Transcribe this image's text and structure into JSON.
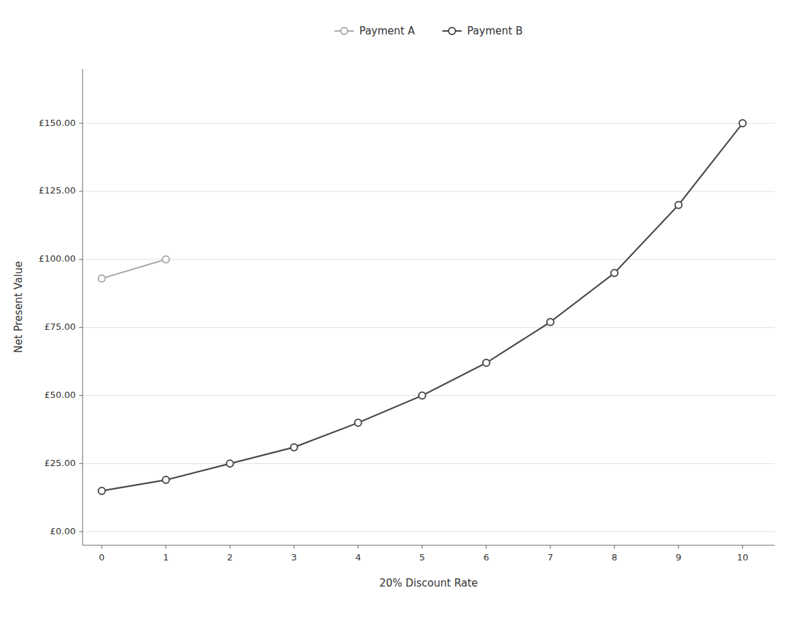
{
  "chart_data": {
    "type": "line",
    "x": [
      0,
      1,
      2,
      3,
      4,
      5,
      6,
      7,
      8,
      9,
      10
    ],
    "series": [
      {
        "name": "Payment A",
        "color": "#aaaaaa",
        "values": [
          93.0,
          100.0,
          null,
          null,
          null,
          null,
          null,
          null,
          null,
          null,
          null
        ]
      },
      {
        "name": "Payment B",
        "color": "#4a4a4a",
        "values": [
          15.0,
          19.0,
          25.0,
          31.0,
          40.0,
          50.0,
          62.0,
          77.0,
          95.0,
          120.0,
          150.0
        ]
      }
    ],
    "x_label": "20% Discount Rate",
    "y_label": "Net Present Value",
    "xlim": [
      -0.3,
      10.5
    ],
    "ylim": [
      -5,
      170
    ],
    "xticks": [
      0,
      1,
      2,
      3,
      4,
      5,
      6,
      7,
      8,
      9,
      10
    ],
    "yticks": [
      {
        "value": 0,
        "label": "£0.00"
      },
      {
        "value": 25,
        "label": "£25.00"
      },
      {
        "value": 50,
        "label": "£50.00"
      },
      {
        "value": 75,
        "label": "£75.00"
      },
      {
        "value": 100,
        "label": "£100.00"
      },
      {
        "value": 125,
        "label": "£125.00"
      },
      {
        "value": 150,
        "label": "£150.00"
      }
    ],
    "grid": true,
    "legend": "top",
    "marker": "circle"
  }
}
